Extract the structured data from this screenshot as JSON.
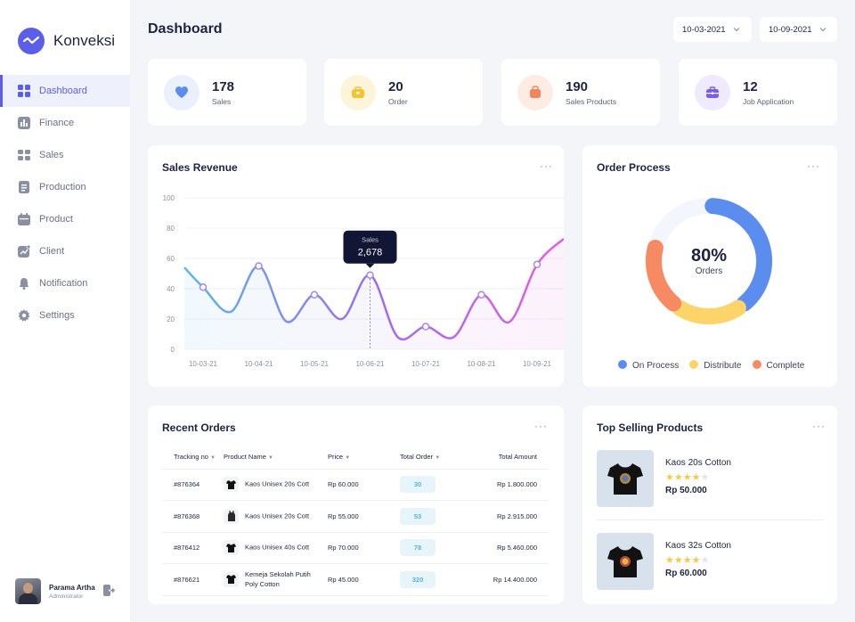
{
  "app": {
    "name": "Konveksi"
  },
  "nav": [
    {
      "label": "Dashboard",
      "icon": "grid-icon",
      "active": true
    },
    {
      "label": "Finance",
      "icon": "bar-chart-icon"
    },
    {
      "label": "Sales",
      "icon": "tag-icon"
    },
    {
      "label": "Production",
      "icon": "document-icon"
    },
    {
      "label": "Product",
      "icon": "calendar-icon"
    },
    {
      "label": "Client",
      "icon": "trend-icon"
    },
    {
      "label": "Notification",
      "icon": "bell-icon"
    },
    {
      "label": "Settings",
      "icon": "gear-icon"
    }
  ],
  "user": {
    "name": "Parama Artha",
    "role": "Administrator"
  },
  "header": {
    "title": "Dashboard",
    "date_from": "10-03-2021",
    "date_to": "10-09-2021"
  },
  "stats": [
    {
      "value": "178",
      "label": "Sales",
      "icon": "heart-icon",
      "color": "#5b8def",
      "bg": "#eaf1fd"
    },
    {
      "value": "20",
      "label": "Order",
      "icon": "bag-icon",
      "color": "#f4c430",
      "bg": "#fdf5d9"
    },
    {
      "value": "190",
      "label": "Sales Products",
      "icon": "shopping-bag-icon",
      "color": "#f2855e",
      "bg": "#fdece4"
    },
    {
      "value": "12",
      "label": "Job Application",
      "icon": "briefcase-icon",
      "color": "#7a5ee8",
      "bg": "#efeafd"
    }
  ],
  "sales_revenue": {
    "title": "Sales Revenue",
    "more": "···",
    "tooltip": {
      "label": "Sales",
      "value": "2,678"
    },
    "chart_data": {
      "type": "line",
      "categories": [
        "10-03-21",
        "10-04-21",
        "10-05-21",
        "10-06-21",
        "10-07-21",
        "10-08-21",
        "10-09-21"
      ],
      "yticks": [
        "100",
        "80",
        "60",
        "40",
        "20",
        "0"
      ],
      "ylim": [
        0,
        100
      ],
      "points": [
        {
          "x": "10-03-21",
          "y": 41,
          "marked": true
        },
        {
          "x": "10-04-21",
          "y": 55,
          "marked": true
        },
        {
          "x": "10-05-21",
          "y": 36,
          "marked": true
        },
        {
          "x": "10-06-21",
          "y": 49,
          "marked": true
        },
        {
          "x": "10-07-21",
          "y": 15,
          "marked": true
        },
        {
          "x": "10-08-21",
          "y": 36,
          "marked": true
        },
        {
          "x": "10-09-21",
          "y": 56,
          "marked": true
        }
      ]
    }
  },
  "order_process": {
    "title": "Order Process",
    "more": "···",
    "center_value": "80%",
    "center_label": "Orders",
    "chart_data": {
      "type": "pie",
      "slices": [
        {
          "name": "On Process",
          "value": 40,
          "color": "#5b8def"
        },
        {
          "name": "Distribute",
          "value": 20,
          "color": "#fcd46a"
        },
        {
          "name": "Complete",
          "value": 20,
          "color": "#f58a63"
        }
      ]
    }
  },
  "recent_orders": {
    "title": "Recent Orders",
    "more": "···",
    "columns": [
      "Tracking no",
      "Product Name",
      "Price",
      "Total Order",
      "Total Amount"
    ],
    "rows": [
      {
        "tracking": "#876364",
        "product": "Kaos Unisex 20s Cott",
        "price": "Rp 60.000",
        "qty": "30",
        "amount": "Rp 1.800.000",
        "thumb": "tshirt-icon"
      },
      {
        "tracking": "#876368",
        "product": "Kaos Unisex 20s Cott",
        "price": "Rp 55.000",
        "qty": "53",
        "amount": "Rp 2.915.000",
        "thumb": "tank-top-icon"
      },
      {
        "tracking": "#876412",
        "product": "Kaos Unisex 40s Cott",
        "price": "Rp 70.000",
        "qty": "78",
        "amount": "Rp 5.460.000",
        "thumb": "tshirt-icon"
      },
      {
        "tracking": "#876621",
        "product": "Kemeja Sekolah Putih Poly Cotton",
        "price": "Rp 45.000",
        "qty": "320",
        "amount": "Rp 14.400.000",
        "thumb": "tshirt-icon"
      }
    ]
  },
  "top_selling": {
    "title": "Top Selling Products",
    "more": "···",
    "items": [
      {
        "name": "Kaos 20s Cotton",
        "rating": 4,
        "price": "Rp 50.000"
      },
      {
        "name": "Kaos 32s Cotton",
        "rating": 4,
        "price": "Rp 60.000"
      }
    ]
  }
}
